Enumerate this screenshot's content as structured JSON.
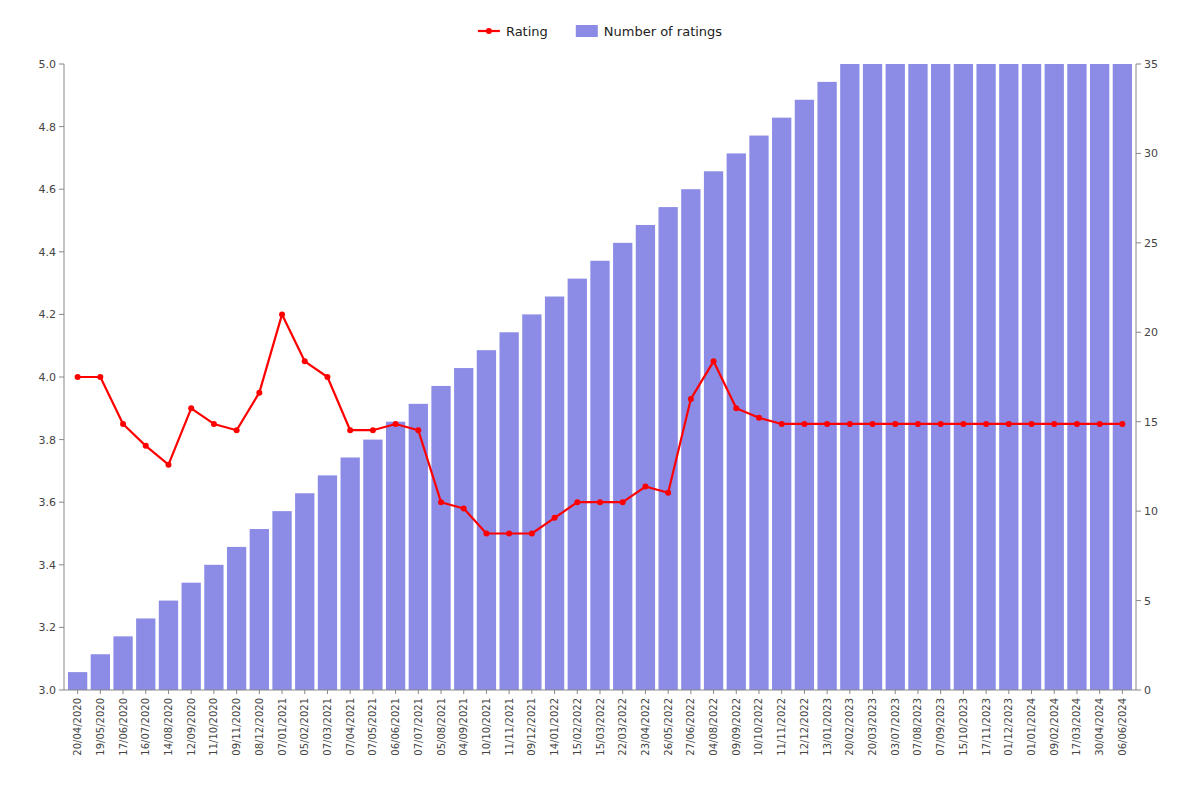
{
  "chart_data": {
    "type": "bar",
    "categories": [
      "20/04/2020",
      "19/05/2020",
      "17/06/2020",
      "16/07/2020",
      "14/08/2020",
      "12/09/2020",
      "11/10/2020",
      "09/11/2020",
      "08/12/2020",
      "07/01/2021",
      "05/02/2021",
      "07/03/2021",
      "07/04/2021",
      "07/05/2021",
      "06/06/2021",
      "07/07/2021",
      "05/08/2021",
      "04/09/2021",
      "10/10/2021",
      "11/11/2021",
      "09/12/2021",
      "14/01/2022",
      "15/02/2022",
      "15/03/2022",
      "22/03/2022",
      "23/04/2022",
      "26/05/2022",
      "27/06/2022",
      "04/08/2022",
      "09/09/2022",
      "10/10/2022",
      "11/11/2022",
      "12/12/2022",
      "13/01/2023",
      "20/02/2023",
      "20/03/2023",
      "03/07/2023",
      "07/08/2023",
      "07/09/2023",
      "15/10/2023",
      "17/11/2023",
      "01/12/2023",
      "01/01/2024",
      "09/02/2024",
      "17/03/2024",
      "30/04/2024",
      "06/06/2024"
    ],
    "series": [
      {
        "name": "Rating",
        "type": "line",
        "color": "#ff0000",
        "marker": "circle",
        "values": [
          4.0,
          4.0,
          3.85,
          3.78,
          3.72,
          3.9,
          3.85,
          3.83,
          3.95,
          4.2,
          4.05,
          4.0,
          3.83,
          3.83,
          3.85,
          3.83,
          3.6,
          3.58,
          3.5,
          3.5,
          3.5,
          3.55,
          3.6,
          3.6,
          3.6,
          3.65,
          3.63,
          3.93,
          4.05,
          3.9,
          3.87,
          3.85,
          3.85,
          3.85,
          3.85,
          3.85,
          3.85,
          3.85,
          3.85,
          3.85,
          3.85,
          3.85,
          3.85,
          3.85,
          3.85,
          3.85,
          3.85
        ]
      },
      {
        "name": "Number of ratings",
        "type": "bar",
        "color": "#6666dd",
        "axis": "y2",
        "values": [
          1,
          2,
          3,
          4,
          5,
          6,
          7,
          8,
          9,
          10,
          11,
          12,
          13,
          14,
          15,
          16,
          17,
          18,
          19,
          20,
          21,
          22,
          23,
          24,
          25,
          26,
          27,
          28,
          29,
          30,
          31,
          32,
          33,
          34,
          35,
          35,
          35,
          35,
          35,
          35,
          35,
          35,
          35,
          35,
          35,
          35,
          35
        ]
      }
    ],
    "ylim": [
      3.0,
      5.0
    ],
    "yticks": [
      {
        "value": 3.0,
        "label": "3.0"
      },
      3.2,
      3.4,
      3.6,
      3.8,
      {
        "value": 4.0,
        "label": "4.0"
      },
      4.2,
      4.4,
      4.6,
      4.8,
      {
        "value": 5.0,
        "label": "5.0"
      }
    ],
    "y2lim": [
      0,
      35
    ],
    "y2ticks": [
      0,
      5,
      10,
      15,
      20,
      25,
      30,
      35
    ],
    "grid": false,
    "legend": "top"
  }
}
